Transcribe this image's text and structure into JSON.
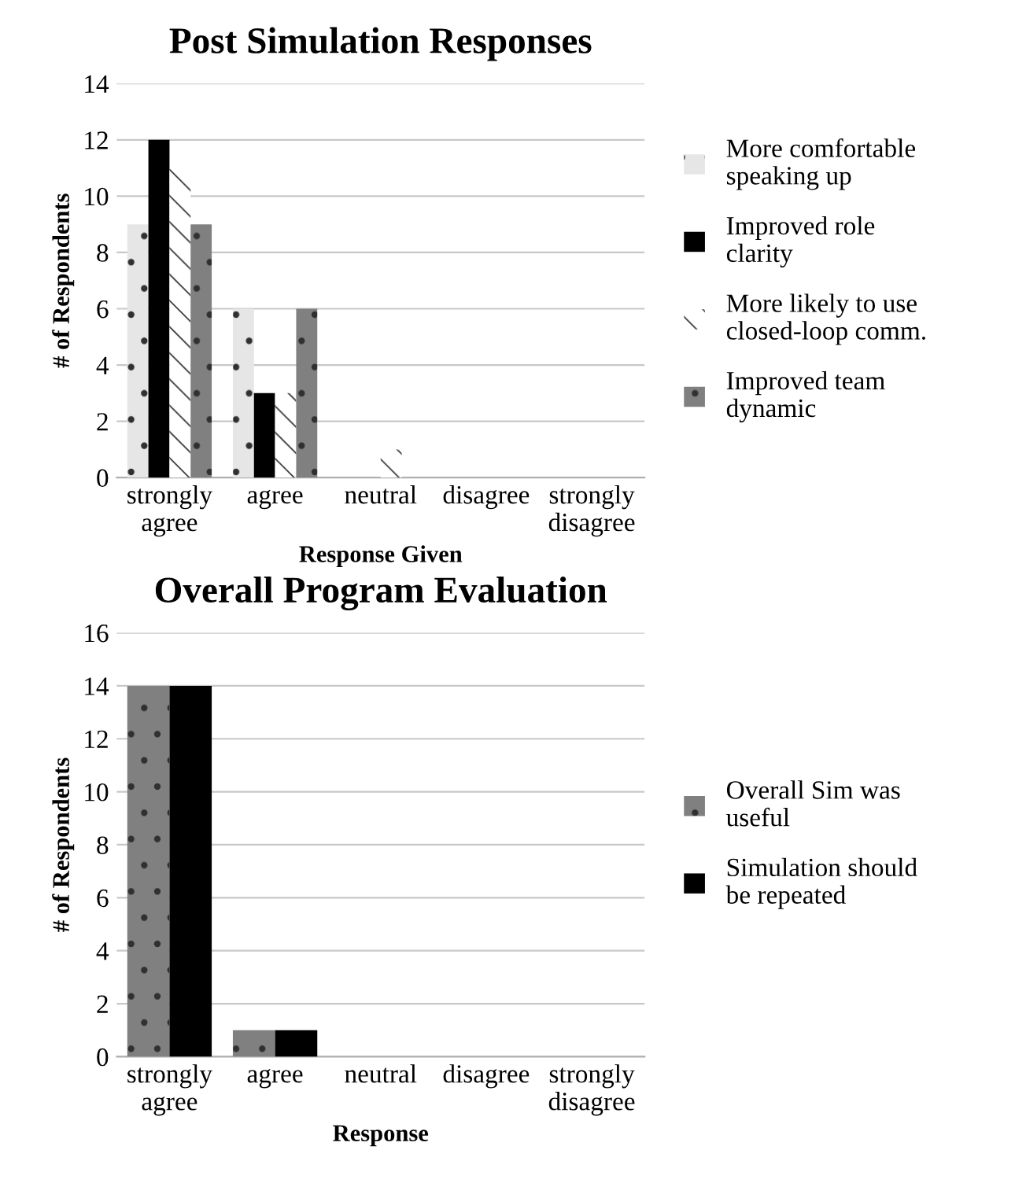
{
  "chart_data": [
    {
      "type": "bar",
      "title": "Post Simulation Responses",
      "xlabel": "Response Given",
      "ylabel": "# of Respondents",
      "categories": [
        "strongly agree",
        "agree",
        "neutral",
        "disagree",
        "strongly disagree"
      ],
      "series": [
        {
          "name": "More comfortable speaking up",
          "color": "#e6e6e6",
          "values": [
            9,
            6,
            0,
            0,
            0
          ]
        },
        {
          "name": "Improved role clarity",
          "color": "#000000",
          "values": [
            12,
            3,
            0,
            0,
            0
          ]
        },
        {
          "name": "More likely to use closed-loop comm.",
          "color": "#ffffff",
          "values": [
            11,
            3,
            1,
            0,
            0
          ]
        },
        {
          "name": "Improved team dynamic",
          "color": "#808080",
          "values": [
            9,
            6,
            0,
            0,
            0
          ]
        }
      ],
      "ylim": [
        0,
        14
      ],
      "yticks": [
        0,
        2,
        4,
        6,
        8,
        10,
        12,
        14
      ],
      "grid": "y",
      "legend": "right"
    },
    {
      "type": "bar",
      "title": "Overall Program Evaluation",
      "xlabel": "Response",
      "ylabel": "# of Respondents",
      "categories": [
        "strongly agree",
        "agree",
        "neutral",
        "disagree",
        "strongly disagree"
      ],
      "series": [
        {
          "name": "Overall Sim was useful",
          "color": "#808080",
          "values": [
            14,
            1,
            0,
            0,
            0
          ]
        },
        {
          "name": "Simulation should be repeated",
          "color": "#000000",
          "values": [
            14,
            1,
            0,
            0,
            0
          ]
        }
      ],
      "ylim": [
        0,
        16
      ],
      "yticks": [
        0,
        2,
        4,
        6,
        8,
        10,
        12,
        14,
        16
      ],
      "grid": "y",
      "legend": "right"
    }
  ]
}
